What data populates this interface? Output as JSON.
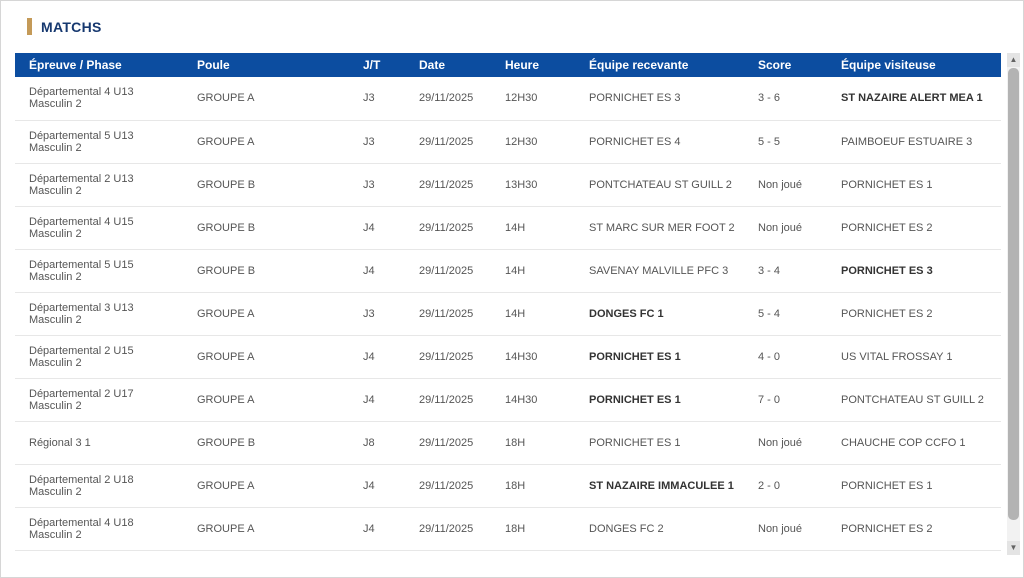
{
  "page": {
    "title": "MATCHS"
  },
  "colors": {
    "accent_gold": "#c49a58",
    "title_navy": "#16386f",
    "header_blue": "#0c4da0",
    "row_text": "#555555",
    "bold_text": "#333333"
  },
  "scrollbar": {
    "up_icon": "▲",
    "down_icon": "▼"
  },
  "table": {
    "headers": [
      {
        "key": "epreuve",
        "label": "Épreuve / Phase"
      },
      {
        "key": "poule",
        "label": "Poule"
      },
      {
        "key": "jt",
        "label": "J/T"
      },
      {
        "key": "date",
        "label": "Date"
      },
      {
        "key": "heure",
        "label": "Heure"
      },
      {
        "key": "home",
        "label": "Équipe recevante"
      },
      {
        "key": "score",
        "label": "Score"
      },
      {
        "key": "away",
        "label": "Équipe visiteuse"
      }
    ],
    "rows": [
      {
        "epreuve": "Départemental 4 U13 Masculin 2",
        "poule": "GROUPE A",
        "jt": "J3",
        "date": "29/11/2025",
        "heure": "12H30",
        "home": "PORNICHET ES 3",
        "home_bold": false,
        "score": "3 - 6",
        "away": "ST NAZAIRE ALERT MEA 1",
        "away_bold": true
      },
      {
        "epreuve": "Départemental 5 U13 Masculin 2",
        "poule": "GROUPE A",
        "jt": "J3",
        "date": "29/11/2025",
        "heure": "12H30",
        "home": "PORNICHET ES 4",
        "home_bold": false,
        "score": "5 - 5",
        "away": "PAIMBOEUF ESTUAIRE 3",
        "away_bold": false
      },
      {
        "epreuve": "Départemental 2 U13 Masculin 2",
        "poule": "GROUPE B",
        "jt": "J3",
        "date": "29/11/2025",
        "heure": "13H30",
        "home": "PONTCHATEAU ST GUILL 2",
        "home_bold": false,
        "score": "Non joué",
        "away": "PORNICHET ES 1",
        "away_bold": false
      },
      {
        "epreuve": "Départemental 4 U15 Masculin 2",
        "poule": "GROUPE B",
        "jt": "J4",
        "date": "29/11/2025",
        "heure": "14H",
        "home": "ST MARC SUR MER FOOT 2",
        "home_bold": false,
        "score": "Non joué",
        "away": "PORNICHET ES 2",
        "away_bold": false
      },
      {
        "epreuve": "Départemental 5 U15 Masculin 2",
        "poule": "GROUPE B",
        "jt": "J4",
        "date": "29/11/2025",
        "heure": "14H",
        "home": "SAVENAY MALVILLE PFC 3",
        "home_bold": false,
        "score": "3 - 4",
        "away": "PORNICHET ES 3",
        "away_bold": true
      },
      {
        "epreuve": "Départemental 3 U13 Masculin 2",
        "poule": "GROUPE A",
        "jt": "J3",
        "date": "29/11/2025",
        "heure": "14H",
        "home": "DONGES FC 1",
        "home_bold": true,
        "score": "5 - 4",
        "away": "PORNICHET ES 2",
        "away_bold": false
      },
      {
        "epreuve": "Départemental 2 U15 Masculin 2",
        "poule": "GROUPE A",
        "jt": "J4",
        "date": "29/11/2025",
        "heure": "14H30",
        "home": "PORNICHET ES 1",
        "home_bold": true,
        "score": "4 - 0",
        "away": "US VITAL FROSSAY 1",
        "away_bold": false
      },
      {
        "epreuve": "Départemental 2 U17 Masculin 2",
        "poule": "GROUPE A",
        "jt": "J4",
        "date": "29/11/2025",
        "heure": "14H30",
        "home": "PORNICHET ES 1",
        "home_bold": true,
        "score": "7 - 0",
        "away": "PONTCHATEAU ST GUILL 2",
        "away_bold": false
      },
      {
        "epreuve": "Régional 3 1",
        "poule": "GROUPE B",
        "jt": "J8",
        "date": "29/11/2025",
        "heure": "18H",
        "home": "PORNICHET ES 1",
        "home_bold": false,
        "score": "Non joué",
        "away": "CHAUCHE COP CCFO 1",
        "away_bold": false
      },
      {
        "epreuve": "Départemental 2 U18 Masculin 2",
        "poule": "GROUPE A",
        "jt": "J4",
        "date": "29/11/2025",
        "heure": "18H",
        "home": "ST NAZAIRE IMMACULEE 1",
        "home_bold": true,
        "score": "2 - 0",
        "away": "PORNICHET ES 1",
        "away_bold": false
      },
      {
        "epreuve": "Départemental 4 U18 Masculin 2",
        "poule": "GROUPE A",
        "jt": "J4",
        "date": "29/11/2025",
        "heure": "18H",
        "home": "DONGES FC 2",
        "home_bold": false,
        "score": "Non joué",
        "away": "PORNICHET ES 2",
        "away_bold": false
      }
    ]
  }
}
